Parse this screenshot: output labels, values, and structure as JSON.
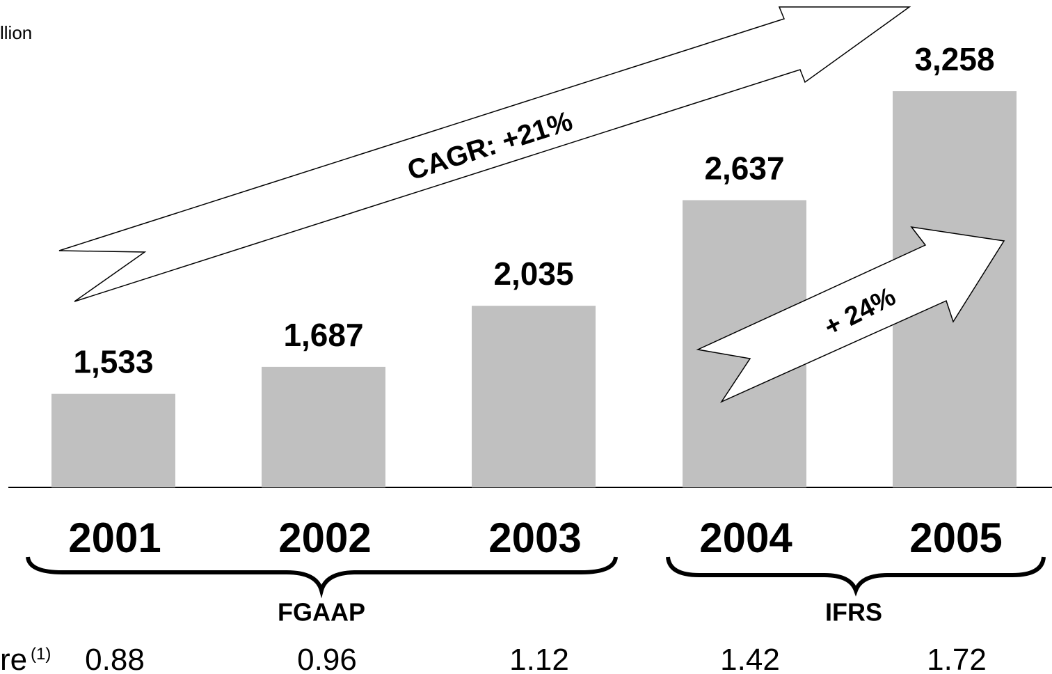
{
  "chart_data": {
    "type": "bar",
    "unit_label": "llion",
    "categories": [
      "2001",
      "2002",
      "2003",
      "2004",
      "2005"
    ],
    "values": [
      1533,
      1687,
      2035,
      2637,
      3258
    ],
    "value_labels": [
      "1,533",
      "1,687",
      "2,035",
      "2,637",
      "3,258"
    ],
    "color": "#c0c0c0",
    "ylim": [
      1000,
      3500
    ],
    "annotations": [
      "CAGR: +21%",
      "+ 24%"
    ],
    "groups": [
      "FGAAP",
      "IFRS"
    ],
    "row": {
      "label": "re",
      "note": "(1)",
      "values": [
        0.88,
        0.96,
        1.12,
        1.42,
        1.72
      ]
    }
  }
}
